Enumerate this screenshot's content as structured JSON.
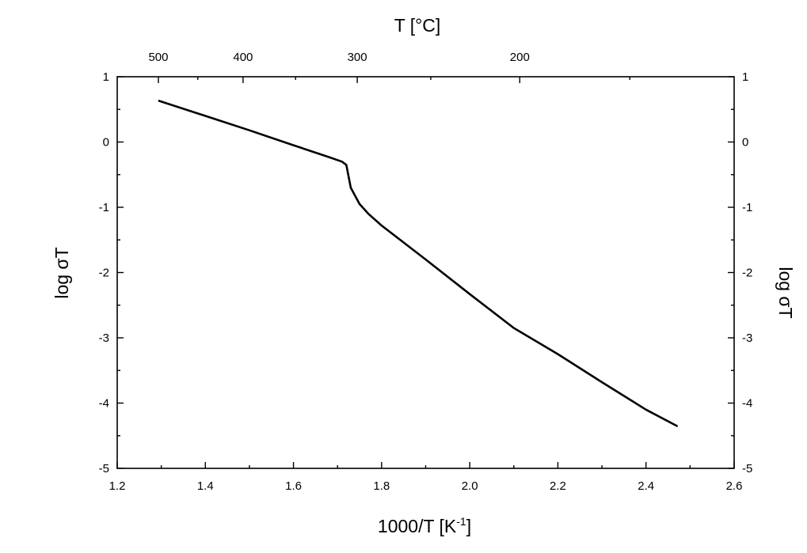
{
  "chart_data": {
    "type": "line",
    "xlabel": "1000/T [K",
    "xlabel_superscript": "-1",
    "xlabel_suffix": "]",
    "ylabel": "log σT",
    "ylabel_right": "log σT",
    "top_axis_label": "T [°C]",
    "xlim": [
      1.2,
      2.6
    ],
    "ylim": [
      -5,
      1
    ],
    "x_ticks": [
      1.2,
      1.4,
      1.6,
      1.8,
      2.0,
      2.2,
      2.4,
      2.6
    ],
    "x_tick_labels": [
      "1.2",
      "1.4",
      "1.6",
      "1.8",
      "2.0",
      "2.2",
      "2.4",
      "2.6"
    ],
    "y_ticks": [
      -5,
      -4,
      -3,
      -2,
      -1,
      0,
      1
    ],
    "y_tick_labels": [
      "-5",
      "-4",
      "-3",
      "-2",
      "-1",
      "0",
      "1"
    ],
    "top_ticks_celsius": [
      500,
      400,
      300,
      200
    ],
    "top_tick_labels": [
      "500",
      "400",
      "300",
      "200"
    ],
    "top_minor_ticks_celsius": [
      450,
      350,
      250,
      150
    ],
    "grid": false,
    "series": [
      {
        "x": [
          1.295,
          1.4,
          1.5,
          1.6,
          1.68,
          1.71,
          1.72,
          1.73,
          1.75,
          1.77,
          1.8,
          1.9,
          2.0,
          2.1,
          2.15,
          2.2,
          2.3,
          2.4,
          2.47
        ],
        "y": [
          0.63,
          0.4,
          0.18,
          -0.05,
          -0.23,
          -0.3,
          -0.35,
          -0.7,
          -0.95,
          -1.1,
          -1.28,
          -1.8,
          -2.33,
          -2.85,
          -3.05,
          -3.25,
          -3.68,
          -4.1,
          -4.35
        ]
      }
    ],
    "line_color": "#000000"
  }
}
